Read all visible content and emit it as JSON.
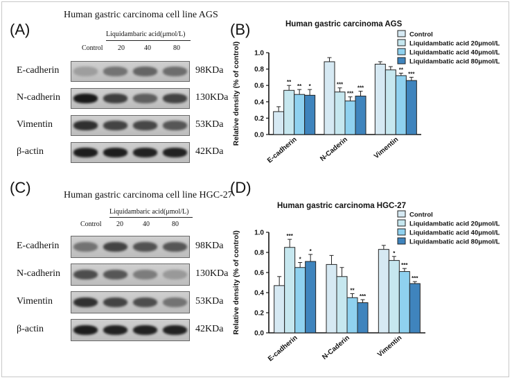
{
  "panels": {
    "A": {
      "label": "(A)",
      "title": "Human gastric carcinoma cell line AGS",
      "treatment_label": "Liquidambaric acid(μmol/L)",
      "lanes": [
        "Control",
        "20",
        "40",
        "80"
      ],
      "rows": [
        {
          "protein": "E-cadherin",
          "size": "98KDa",
          "intensity": [
            0.22,
            0.45,
            0.52,
            0.48
          ]
        },
        {
          "protein": "N-cadherin",
          "size": "130KDa",
          "intensity": [
            0.92,
            0.72,
            0.55,
            0.7
          ]
        },
        {
          "protein": "Vimentin",
          "size": "53KDa",
          "intensity": [
            0.8,
            0.7,
            0.68,
            0.6
          ]
        },
        {
          "protein": "β-actin",
          "size": "42KDa",
          "intensity": [
            0.9,
            0.9,
            0.88,
            0.88
          ]
        }
      ]
    },
    "C": {
      "label": "(C)",
      "title": "Human gastric carcinoma cell line HGC-27",
      "treatment_label": "Liquidambaric acid(μmol/L)",
      "lanes": [
        "Control",
        "20",
        "40",
        "80"
      ],
      "rows": [
        {
          "protein": "E-cadherin",
          "size": "98KDa",
          "intensity": [
            0.45,
            0.7,
            0.62,
            0.6
          ]
        },
        {
          "protein": "N-cadherin",
          "size": "130KDa",
          "intensity": [
            0.65,
            0.6,
            0.4,
            0.25
          ]
        },
        {
          "protein": "Vimentin",
          "size": "53KDa",
          "intensity": [
            0.8,
            0.7,
            0.65,
            0.45
          ]
        },
        {
          "protein": "β-actin",
          "size": "42KDa",
          "intensity": [
            0.9,
            0.88,
            0.88,
            0.88
          ]
        }
      ]
    },
    "B": {
      "label": "(B)"
    },
    "D": {
      "label": "(D)"
    }
  },
  "chart_data": [
    {
      "type": "bar",
      "title": "Human gastric carcinoma AGS",
      "ylabel": "Relative density (% of control)",
      "xlabel": "",
      "ylim": [
        0,
        1.0
      ],
      "yticks": [
        "0.0",
        "0.2",
        "0.4",
        "0.6",
        "0.8",
        "1.0"
      ],
      "categories": [
        "E-cadherin",
        "N-Caderin",
        "Vimentin"
      ],
      "legend_position": "top-right",
      "series": [
        {
          "name": "Control",
          "color": "#d6e9f3",
          "values": [
            0.28,
            0.89,
            0.86
          ],
          "errors": [
            0.06,
            0.05,
            0.03
          ],
          "sig": [
            "",
            "",
            ""
          ]
        },
        {
          "name": "Liquidambatic acid 20μmol/L",
          "color": "#c6e7ef",
          "values": [
            0.54,
            0.52,
            0.79
          ],
          "errors": [
            0.06,
            0.05,
            0.04
          ],
          "sig": [
            "**",
            "***",
            ""
          ]
        },
        {
          "name": "Liquidambatic acid 40μmol/L",
          "color": "#8fd1ef",
          "values": [
            0.49,
            0.41,
            0.72
          ],
          "errors": [
            0.06,
            0.05,
            0.03
          ],
          "sig": [
            "**",
            "***",
            "**"
          ]
        },
        {
          "name": "Liquidambatic acid 80μmol/L",
          "color": "#3f84bd",
          "values": [
            0.48,
            0.47,
            0.66
          ],
          "errors": [
            0.07,
            0.06,
            0.04
          ],
          "sig": [
            "*",
            "***",
            "***"
          ]
        }
      ]
    },
    {
      "type": "bar",
      "title": "Human gastric carcinoma HGC-27",
      "ylabel": "Relative density (% of control)",
      "xlabel": "",
      "ylim": [
        0,
        1.0
      ],
      "yticks": [
        "0.0",
        "0.2",
        "0.4",
        "0.6",
        "0.8",
        "1.0"
      ],
      "categories": [
        "E-cadherin",
        "N-Caderin",
        "Vimentin"
      ],
      "legend_position": "top-right",
      "series": [
        {
          "name": "Control",
          "color": "#d6e9f3",
          "values": [
            0.47,
            0.68,
            0.83
          ],
          "errors": [
            0.09,
            0.09,
            0.04
          ],
          "sig": [
            "",
            "",
            ""
          ]
        },
        {
          "name": "Liquidambatic acid 20μmol/L",
          "color": "#c6e7ef",
          "values": [
            0.85,
            0.56,
            0.72
          ],
          "errors": [
            0.08,
            0.09,
            0.04
          ],
          "sig": [
            "***",
            "",
            "*"
          ]
        },
        {
          "name": "Liquidambatic acid 40μmol/L",
          "color": "#8fd1ef",
          "values": [
            0.65,
            0.35,
            0.61
          ],
          "errors": [
            0.05,
            0.04,
            0.03
          ],
          "sig": [
            "*",
            "**",
            "***"
          ]
        },
        {
          "name": "Liquidambatic acid 80μmol/L",
          "color": "#3f84bd",
          "values": [
            0.71,
            0.3,
            0.49
          ],
          "errors": [
            0.07,
            0.03,
            0.02
          ],
          "sig": [
            "*",
            "***",
            "***"
          ]
        }
      ]
    }
  ]
}
